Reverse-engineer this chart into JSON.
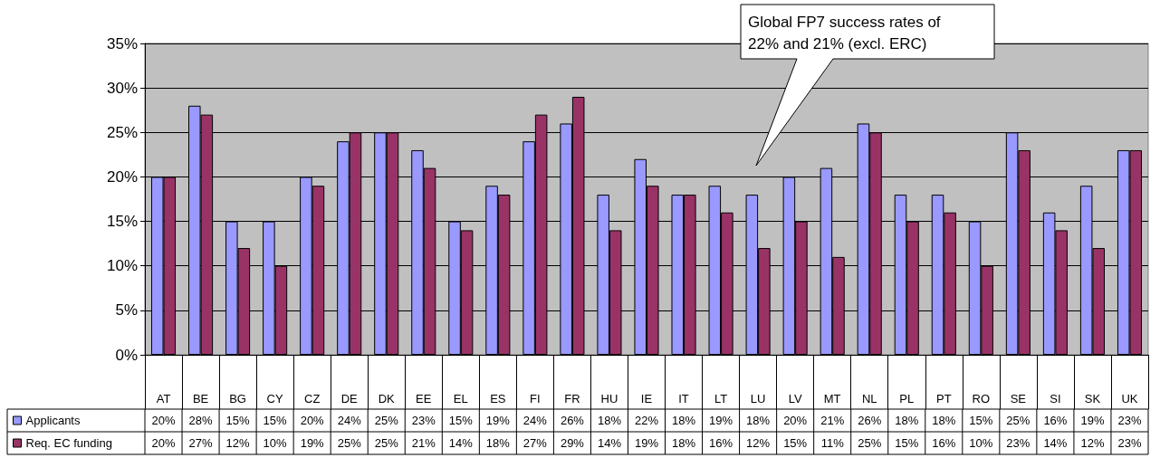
{
  "chart_data": {
    "type": "bar",
    "categories": [
      "AT",
      "BE",
      "BG",
      "CY",
      "CZ",
      "DE",
      "DK",
      "EE",
      "EL",
      "ES",
      "FI",
      "FR",
      "HU",
      "IE",
      "IT",
      "LT",
      "LU",
      "LV",
      "MT",
      "NL",
      "PL",
      "PT",
      "RO",
      "SE",
      "SI",
      "SK",
      "UK"
    ],
    "series": [
      {
        "name": "Applicants",
        "color": "#9999ff",
        "values": [
          20,
          28,
          15,
          15,
          20,
          24,
          25,
          23,
          15,
          19,
          24,
          26,
          18,
          22,
          18,
          19,
          18,
          20,
          21,
          26,
          18,
          18,
          15,
          25,
          16,
          19,
          23
        ],
        "value_labels": [
          "20%",
          "28%",
          "15%",
          "15%",
          "20%",
          "24%",
          "25%",
          "23%",
          "15%",
          "19%",
          "24%",
          "26%",
          "18%",
          "22%",
          "18%",
          "19%",
          "18%",
          "20%",
          "21%",
          "26%",
          "18%",
          "18%",
          "15%",
          "25%",
          "16%",
          "19%",
          "23%"
        ]
      },
      {
        "name": "Req. EC funding",
        "color": "#993366",
        "values": [
          20,
          27,
          12,
          10,
          19,
          25,
          25,
          21,
          14,
          18,
          27,
          29,
          14,
          19,
          18,
          16,
          12,
          15,
          11,
          25,
          15,
          16,
          10,
          23,
          14,
          12,
          23
        ],
        "value_labels": [
          "20%",
          "27%",
          "12%",
          "10%",
          "19%",
          "25%",
          "25%",
          "21%",
          "14%",
          "18%",
          "27%",
          "29%",
          "14%",
          "19%",
          "18%",
          "16%",
          "12%",
          "15%",
          "11%",
          "25%",
          "15%",
          "16%",
          "10%",
          "23%",
          "14%",
          "12%",
          "23%"
        ]
      }
    ],
    "ylim": [
      0,
      35
    ],
    "yticks": [
      {
        "value": 0,
        "label": "0%"
      },
      {
        "value": 5,
        "label": "5%"
      },
      {
        "value": 10,
        "label": "10%"
      },
      {
        "value": 15,
        "label": "15%"
      },
      {
        "value": 20,
        "label": "20%"
      },
      {
        "value": 25,
        "label": "25%"
      },
      {
        "value": 30,
        "label": "30%"
      },
      {
        "value": 35,
        "label": "35%"
      }
    ],
    "grid": "y",
    "legend": "bottom left",
    "annotations": [
      "Global FP7 success rates of\n22% and 21% (excl. ERC)"
    ]
  }
}
